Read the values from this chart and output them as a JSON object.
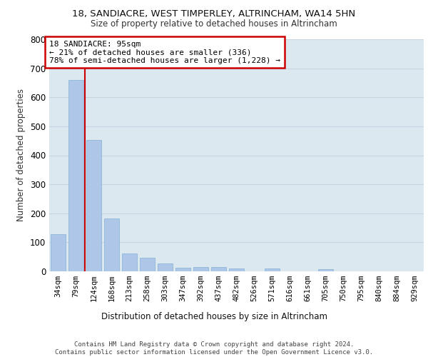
{
  "title_line1": "18, SANDIACRE, WEST TIMPERLEY, ALTRINCHAM, WA14 5HN",
  "title_line2": "Size of property relative to detached houses in Altrincham",
  "xlabel": "Distribution of detached houses by size in Altrincham",
  "ylabel": "Number of detached properties",
  "categories": [
    "34sqm",
    "79sqm",
    "124sqm",
    "168sqm",
    "213sqm",
    "258sqm",
    "303sqm",
    "347sqm",
    "392sqm",
    "437sqm",
    "482sqm",
    "526sqm",
    "571sqm",
    "616sqm",
    "661sqm",
    "705sqm",
    "750sqm",
    "795sqm",
    "840sqm",
    "884sqm",
    "929sqm"
  ],
  "values": [
    128,
    660,
    452,
    183,
    62,
    47,
    28,
    12,
    15,
    15,
    9,
    0,
    9,
    0,
    0,
    8,
    0,
    0,
    0,
    0,
    0
  ],
  "bar_color": "#aec6e8",
  "bar_edgecolor": "#8fb8d8",
  "vline_x": 1.5,
  "vline_color": "#cc0000",
  "annotation_line1": "18 SANDIACRE: 95sqm",
  "annotation_line2": "← 21% of detached houses are smaller (336)",
  "annotation_line3": "78% of semi-detached houses are larger (1,228) →",
  "annotation_box_edgecolor": "#cc0000",
  "annotation_box_facecolor": "#ffffff",
  "ylim": [
    0,
    800
  ],
  "yticks": [
    0,
    100,
    200,
    300,
    400,
    500,
    600,
    700,
    800
  ],
  "grid_color": "#c8d4e0",
  "bg_color": "#dce8f0",
  "footer": "Contains HM Land Registry data © Crown copyright and database right 2024.\nContains public sector information licensed under the Open Government Licence v3.0."
}
